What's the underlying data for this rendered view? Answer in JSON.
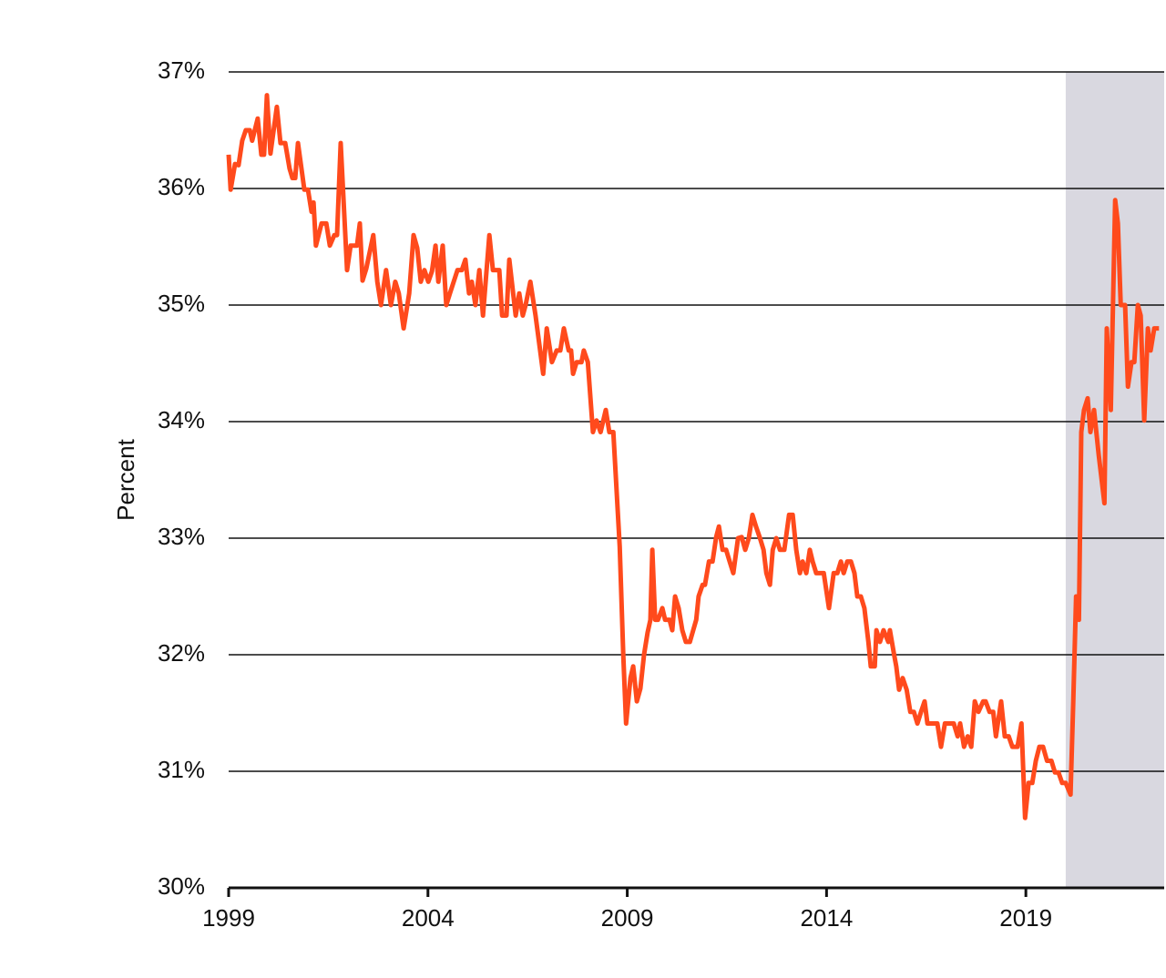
{
  "chart_data": {
    "type": "line",
    "y_label": "Percent",
    "xlim": [
      1999,
      2022.47
    ],
    "xticks": [
      1999,
      2004,
      2009,
      2014,
      2019
    ],
    "ylim": [
      30,
      37
    ],
    "yticks": [
      {
        "value": 30,
        "label": "30%"
      },
      {
        "value": 31,
        "label": "31%"
      },
      {
        "value": 32,
        "label": "32%"
      },
      {
        "value": 33,
        "label": "33%"
      },
      {
        "value": 34,
        "label": "34%"
      },
      {
        "value": 35,
        "label": "35%"
      },
      {
        "value": 36,
        "label": "36%"
      },
      {
        "value": 37,
        "label": "37%"
      }
    ],
    "grid": true,
    "shaded_range": [
      2020,
      2022.47
    ],
    "shade_color": "#d9d8e0",
    "series": [
      {
        "color": "#ff4a1c",
        "x": [
          1999.0,
          1999.05,
          1999.16,
          1999.25,
          1999.34,
          1999.43,
          1999.53,
          1999.59,
          1999.73,
          1999.82,
          1999.89,
          1999.96,
          2000.05,
          2000.21,
          2000.3,
          2000.42,
          2000.53,
          2000.6,
          2000.67,
          2000.74,
          2000.9,
          2000.99,
          2001.08,
          2001.13,
          2001.19,
          2001.33,
          2001.45,
          2001.54,
          2001.65,
          2001.72,
          2001.81,
          2001.97,
          2002.06,
          2002.22,
          2002.29,
          2002.36,
          2002.45,
          2002.63,
          2002.73,
          2002.82,
          2002.95,
          2003.07,
          2003.18,
          2003.27,
          2003.39,
          2003.53,
          2003.64,
          2003.73,
          2003.82,
          2003.91,
          2004.01,
          2004.1,
          2004.19,
          2004.26,
          2004.37,
          2004.46,
          2004.55,
          2004.74,
          2004.85,
          2004.94,
          2005.03,
          2005.1,
          2005.19,
          2005.29,
          2005.38,
          2005.54,
          2005.63,
          2005.79,
          2005.86,
          2005.97,
          2006.04,
          2006.2,
          2006.29,
          2006.38,
          2006.45,
          2006.57,
          2006.7,
          2006.89,
          2006.98,
          2007.11,
          2007.23,
          2007.32,
          2007.41,
          2007.53,
          2007.59,
          2007.64,
          2007.73,
          2007.85,
          2007.91,
          2008.01,
          2008.14,
          2008.23,
          2008.33,
          2008.46,
          2008.55,
          2008.65,
          2008.81,
          2008.9,
          2008.97,
          2009.08,
          2009.15,
          2009.24,
          2009.33,
          2009.42,
          2009.51,
          2009.58,
          2009.63,
          2009.7,
          2009.77,
          2009.88,
          2009.95,
          2010.06,
          2010.13,
          2010.2,
          2010.29,
          2010.38,
          2010.47,
          2010.57,
          2010.73,
          2010.79,
          2010.89,
          2010.95,
          2011.05,
          2011.14,
          2011.23,
          2011.3,
          2011.39,
          2011.48,
          2011.57,
          2011.66,
          2011.78,
          2011.87,
          2011.96,
          2012.05,
          2012.14,
          2012.23,
          2012.33,
          2012.42,
          2012.49,
          2012.58,
          2012.65,
          2012.74,
          2012.83,
          2012.94,
          2013.06,
          2013.15,
          2013.24,
          2013.33,
          2013.4,
          2013.49,
          2013.58,
          2013.65,
          2013.74,
          2013.93,
          2014.06,
          2014.18,
          2014.27,
          2014.36,
          2014.43,
          2014.52,
          2014.61,
          2014.7,
          2014.77,
          2014.86,
          2014.95,
          2015.05,
          2015.11,
          2015.21,
          2015.25,
          2015.34,
          2015.43,
          2015.55,
          2015.59,
          2015.69,
          2015.75,
          2015.82,
          2015.91,
          2016.01,
          2016.1,
          2016.19,
          2016.28,
          2016.37,
          2016.46,
          2016.53,
          2016.78,
          2016.87,
          2016.97,
          2017.19,
          2017.29,
          2017.35,
          2017.45,
          2017.54,
          2017.63,
          2017.72,
          2017.81,
          2017.93,
          2017.99,
          2018.09,
          2018.18,
          2018.25,
          2018.38,
          2018.47,
          2018.57,
          2018.66,
          2018.79,
          2018.89,
          2018.98,
          2019.07,
          2019.16,
          2019.25,
          2019.34,
          2019.43,
          2019.53,
          2019.64,
          2019.73,
          2019.82,
          2019.91,
          2020.0,
          2020.12,
          2020.19,
          2020.26,
          2020.33,
          2020.39,
          2020.46,
          2020.55,
          2020.62,
          2020.71,
          2020.83,
          2020.97,
          2021.03,
          2021.13,
          2021.24,
          2021.31,
          2021.38,
          2021.49,
          2021.56,
          2021.65,
          2021.72,
          2021.81,
          2021.88,
          2021.97,
          2022.06,
          2022.13,
          2022.22,
          2022.34
        ],
        "values": [
          36.29,
          35.99,
          36.21,
          36.2,
          36.41,
          36.5,
          36.5,
          36.41,
          36.6,
          36.29,
          36.29,
          36.8,
          36.3,
          36.7,
          36.39,
          36.39,
          36.17,
          36.09,
          36.09,
          36.39,
          35.99,
          35.99,
          35.8,
          35.88,
          35.51,
          35.7,
          35.7,
          35.51,
          35.6,
          35.6,
          36.39,
          35.3,
          35.51,
          35.51,
          35.7,
          35.21,
          35.31,
          35.6,
          35.2,
          35.0,
          35.3,
          35.0,
          35.2,
          35.1,
          34.8,
          35.1,
          35.6,
          35.49,
          35.2,
          35.3,
          35.2,
          35.29,
          35.51,
          35.2,
          35.51,
          35.0,
          35.1,
          35.3,
          35.3,
          35.39,
          35.1,
          35.2,
          35.0,
          35.3,
          34.91,
          35.6,
          35.3,
          35.3,
          34.91,
          34.91,
          35.39,
          34.91,
          35.1,
          34.91,
          35.0,
          35.2,
          34.91,
          34.41,
          34.8,
          34.51,
          34.61,
          34.61,
          34.8,
          34.61,
          34.61,
          34.41,
          34.51,
          34.51,
          34.61,
          34.51,
          33.91,
          34.01,
          33.91,
          34.1,
          33.91,
          33.91,
          32.93,
          32.0,
          31.41,
          31.8,
          31.9,
          31.6,
          31.71,
          32.0,
          32.19,
          32.3,
          32.9,
          32.3,
          32.3,
          32.4,
          32.3,
          32.3,
          32.21,
          32.5,
          32.4,
          32.21,
          32.11,
          32.11,
          32.3,
          32.5,
          32.6,
          32.6,
          32.8,
          32.8,
          33.01,
          33.1,
          32.9,
          32.9,
          32.8,
          32.7,
          33.0,
          33.01,
          32.9,
          33.0,
          33.2,
          33.1,
          33.0,
          32.9,
          32.7,
          32.6,
          32.9,
          33.0,
          32.9,
          32.9,
          33.2,
          33.2,
          32.9,
          32.7,
          32.8,
          32.7,
          32.9,
          32.8,
          32.7,
          32.7,
          32.4,
          32.7,
          32.7,
          32.8,
          32.7,
          32.8,
          32.8,
          32.7,
          32.5,
          32.5,
          32.4,
          32.11,
          31.9,
          31.9,
          32.21,
          32.11,
          32.21,
          32.11,
          32.21,
          32.01,
          31.9,
          31.7,
          31.8,
          31.7,
          31.51,
          31.51,
          31.41,
          31.51,
          31.6,
          31.41,
          31.41,
          31.21,
          31.41,
          31.41,
          31.3,
          31.41,
          31.21,
          31.3,
          31.21,
          31.6,
          31.51,
          31.6,
          31.6,
          31.51,
          31.51,
          31.3,
          31.6,
          31.3,
          31.3,
          31.21,
          31.21,
          31.41,
          30.6,
          30.9,
          30.9,
          31.09,
          31.21,
          31.21,
          31.09,
          31.09,
          30.99,
          30.99,
          30.9,
          30.9,
          30.8,
          31.6,
          32.5,
          32.3,
          33.91,
          34.1,
          34.2,
          33.91,
          34.1,
          33.71,
          33.3,
          34.8,
          34.1,
          35.9,
          35.7,
          35.0,
          35.0,
          34.3,
          34.51,
          34.51,
          35.0,
          34.91,
          34.01,
          34.8,
          34.61,
          34.8,
          34.8
        ]
      }
    ]
  }
}
